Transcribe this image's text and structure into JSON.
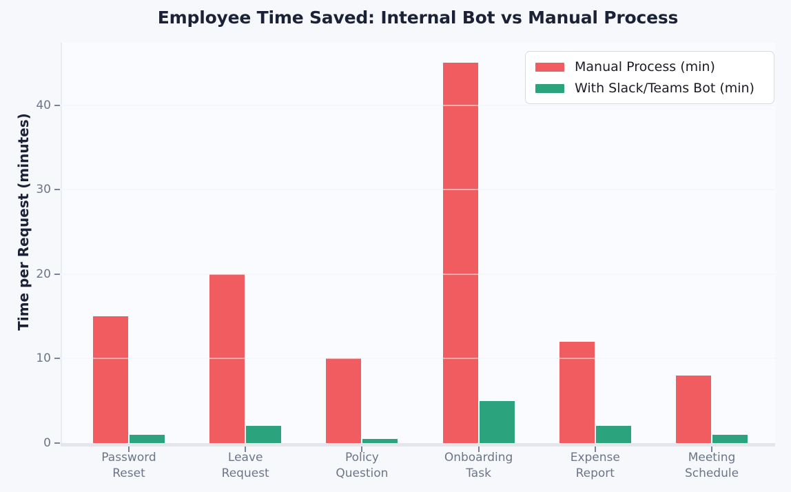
{
  "chart_data": {
    "type": "bar",
    "title": "Employee Time Saved: Internal Bot vs Manual Process",
    "ylabel": "Time per Request (minutes)",
    "xlabel": "",
    "categories": [
      "Password\nReset",
      "Leave\nRequest",
      "Policy\nQuestion",
      "Onboarding\nTask",
      "Expense\nReport",
      "Meeting\nSchedule"
    ],
    "series": [
      {
        "name": "Manual Process (min)",
        "color": "#f05c5f",
        "values": [
          15,
          20,
          10,
          45,
          12,
          8
        ]
      },
      {
        "name": "With Slack/Teams Bot (min)",
        "color": "#2ba47e",
        "values": [
          1,
          2,
          0.5,
          5,
          2,
          1
        ]
      }
    ],
    "y_ticks": [
      0,
      10,
      20,
      30,
      40
    ],
    "ylim": [
      0,
      47.4
    ],
    "grid": "horizontal",
    "legend_position": "upper-right"
  },
  "colors": {
    "figure_bg": "#f7f8fc",
    "plot_bg": "#fafbfe",
    "title_text": "#1b2238",
    "axis_label_text": "#1b2238",
    "tick_label_text": "#6b7587",
    "tick_mark": "#7a8396",
    "gridline": "#edeff4",
    "spine": "#e4e6eb",
    "legend_bg": "#ffffff",
    "legend_border": "#d7d9df",
    "legend_text": "#1a1d24",
    "series_manual": "#f05c5f",
    "series_bot": "#2ba47e"
  }
}
